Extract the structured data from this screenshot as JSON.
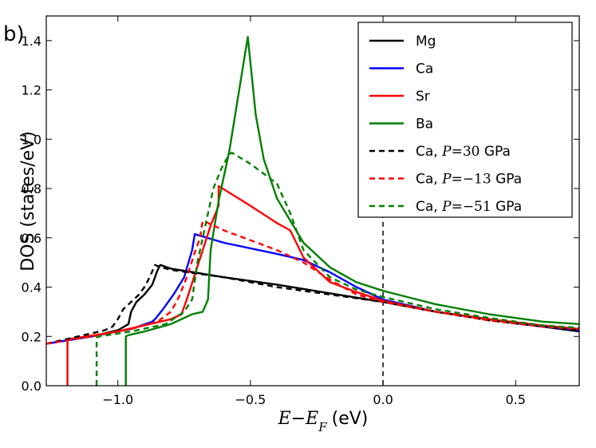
{
  "panel_label": "b)",
  "chart_data": {
    "type": "line",
    "title": "",
    "xlabel": {
      "E": "E",
      "minus": "−",
      "EF": "E",
      "F": "F",
      "unit": "(eV)"
    },
    "ylabel": "DOS (states/eV)",
    "xlim": [
      -1.27,
      0.74
    ],
    "ylim": [
      0.0,
      1.5
    ],
    "xticks": [
      -1.0,
      -0.5,
      0.0,
      0.5
    ],
    "xtick_labels": [
      "−1.0",
      "−0.5",
      "0.0",
      "0.5"
    ],
    "yticks": [
      0.0,
      0.2,
      0.4,
      0.6,
      0.8,
      1.0,
      1.2,
      1.4
    ],
    "ytick_labels": [
      "0.0",
      "0.2",
      "0.4",
      "0.6",
      "0.8",
      "1.0",
      "1.2",
      "1.4"
    ],
    "fermi_level_x": 0.0,
    "legend_position": "top-right",
    "series": [
      {
        "name": "Mg",
        "label": "Mg",
        "color": "#000000",
        "dash": "solid",
        "x": [
          -1.27,
          -1.1,
          -1.0,
          -0.96,
          -0.95,
          -0.93,
          -0.9,
          -0.87,
          -0.85,
          -0.84,
          -0.8,
          -0.6,
          -0.4,
          -0.2,
          0.0,
          0.2,
          0.4,
          0.6,
          0.74
        ],
        "y": [
          0.17,
          0.2,
          0.225,
          0.25,
          0.3,
          0.34,
          0.37,
          0.41,
          0.47,
          0.49,
          0.475,
          0.44,
          0.41,
          0.375,
          0.34,
          0.3,
          0.27,
          0.24,
          0.22
        ]
      },
      {
        "name": "Ca",
        "label": "Ca",
        "color": "#0000ff",
        "dash": "solid",
        "x": [
          -1.27,
          -1.1,
          -0.95,
          -0.87,
          -0.86,
          -0.83,
          -0.79,
          -0.75,
          -0.72,
          -0.71,
          -0.6,
          -0.4,
          -0.3,
          -0.2,
          -0.1,
          0.0,
          0.2,
          0.4,
          0.6,
          0.74
        ],
        "y": [
          0.17,
          0.2,
          0.23,
          0.26,
          0.27,
          0.31,
          0.37,
          0.44,
          0.55,
          0.615,
          0.58,
          0.535,
          0.51,
          0.46,
          0.4,
          0.35,
          0.3,
          0.27,
          0.24,
          0.225
        ]
      },
      {
        "name": "Sr",
        "label": "Sr",
        "color": "#ff0000",
        "dash": "solid",
        "x": [
          -1.19,
          -1.19,
          -1.18,
          -1.0,
          -0.8,
          -0.76,
          -0.74,
          -0.71,
          -0.68,
          -0.65,
          -0.62,
          -0.62,
          -0.5,
          -0.4,
          -0.35,
          -0.3,
          -0.2,
          -0.1,
          0.0,
          0.2,
          0.4,
          0.6,
          0.74
        ],
        "y": [
          0.0,
          0.185,
          0.19,
          0.22,
          0.27,
          0.29,
          0.35,
          0.45,
          0.55,
          0.65,
          0.73,
          0.81,
          0.73,
          0.66,
          0.63,
          0.52,
          0.42,
          0.38,
          0.345,
          0.3,
          0.27,
          0.245,
          0.23
        ]
      },
      {
        "name": "Ba",
        "label": "Ba",
        "color": "#008000",
        "dash": "solid",
        "x": [
          -0.97,
          -0.97,
          -0.96,
          -0.9,
          -0.8,
          -0.72,
          -0.68,
          -0.66,
          -0.65,
          -0.62,
          -0.58,
          -0.55,
          -0.52,
          -0.51,
          -0.48,
          -0.45,
          -0.4,
          -0.3,
          -0.2,
          -0.1,
          0.0,
          0.2,
          0.4,
          0.6,
          0.74
        ],
        "y": [
          0.0,
          0.2,
          0.205,
          0.22,
          0.25,
          0.29,
          0.3,
          0.35,
          0.55,
          0.75,
          0.95,
          1.15,
          1.35,
          1.415,
          1.1,
          0.92,
          0.76,
          0.58,
          0.48,
          0.42,
          0.385,
          0.33,
          0.29,
          0.26,
          0.25
        ]
      },
      {
        "name": "Ca30",
        "label": "Ca, ",
        "math": "P",
        "eq": "=",
        "val": "30",
        "unit": " GPa",
        "color": "#000000",
        "dash": "dashed",
        "x": [
          -1.27,
          -1.15,
          -1.05,
          -1.02,
          -1.0,
          -0.98,
          -0.95,
          -0.92,
          -0.9,
          -0.88,
          -0.86,
          -0.85,
          -0.8,
          -0.6,
          -0.4,
          -0.2,
          0.0,
          0.2,
          0.4,
          0.6,
          0.74
        ],
        "y": [
          0.17,
          0.2,
          0.225,
          0.24,
          0.27,
          0.31,
          0.34,
          0.37,
          0.4,
          0.44,
          0.49,
          0.485,
          0.47,
          0.44,
          0.4,
          0.37,
          0.34,
          0.3,
          0.265,
          0.24,
          0.225
        ]
      },
      {
        "name": "Ca-13",
        "label": "Ca, ",
        "math": "P",
        "eq": "=",
        "val": "−13",
        "unit": " GPa",
        "color": "#ff0000",
        "dash": "dashed",
        "x": [
          -1.27,
          -1.1,
          -0.95,
          -0.85,
          -0.8,
          -0.77,
          -0.74,
          -0.71,
          -0.69,
          -0.68,
          -0.6,
          -0.4,
          -0.3,
          -0.2,
          -0.1,
          0.0,
          0.2,
          0.4,
          0.6,
          0.74
        ],
        "y": [
          0.17,
          0.2,
          0.23,
          0.26,
          0.3,
          0.36,
          0.44,
          0.54,
          0.6,
          0.67,
          0.63,
          0.55,
          0.5,
          0.43,
          0.37,
          0.34,
          0.3,
          0.265,
          0.24,
          0.23
        ]
      },
      {
        "name": "Ca-51",
        "label": "Ca, ",
        "math": "P",
        "eq": "=",
        "val": "−51",
        "unit": " GPa",
        "color": "#008000",
        "dash": "dashed",
        "x": [
          -1.08,
          -1.08,
          -1.07,
          -0.95,
          -0.82,
          -0.75,
          -0.72,
          -0.7,
          -0.67,
          -0.64,
          -0.61,
          -0.58,
          -0.57,
          -0.5,
          -0.45,
          -0.4,
          -0.35,
          -0.3,
          -0.2,
          -0.1,
          0.0,
          0.2,
          0.4,
          0.6,
          0.74
        ],
        "y": [
          0.0,
          0.195,
          0.2,
          0.22,
          0.25,
          0.3,
          0.35,
          0.5,
          0.65,
          0.8,
          0.88,
          0.94,
          0.945,
          0.9,
          0.86,
          0.82,
          0.7,
          0.55,
          0.44,
          0.39,
          0.36,
          0.31,
          0.275,
          0.245,
          0.235
        ]
      }
    ]
  }
}
